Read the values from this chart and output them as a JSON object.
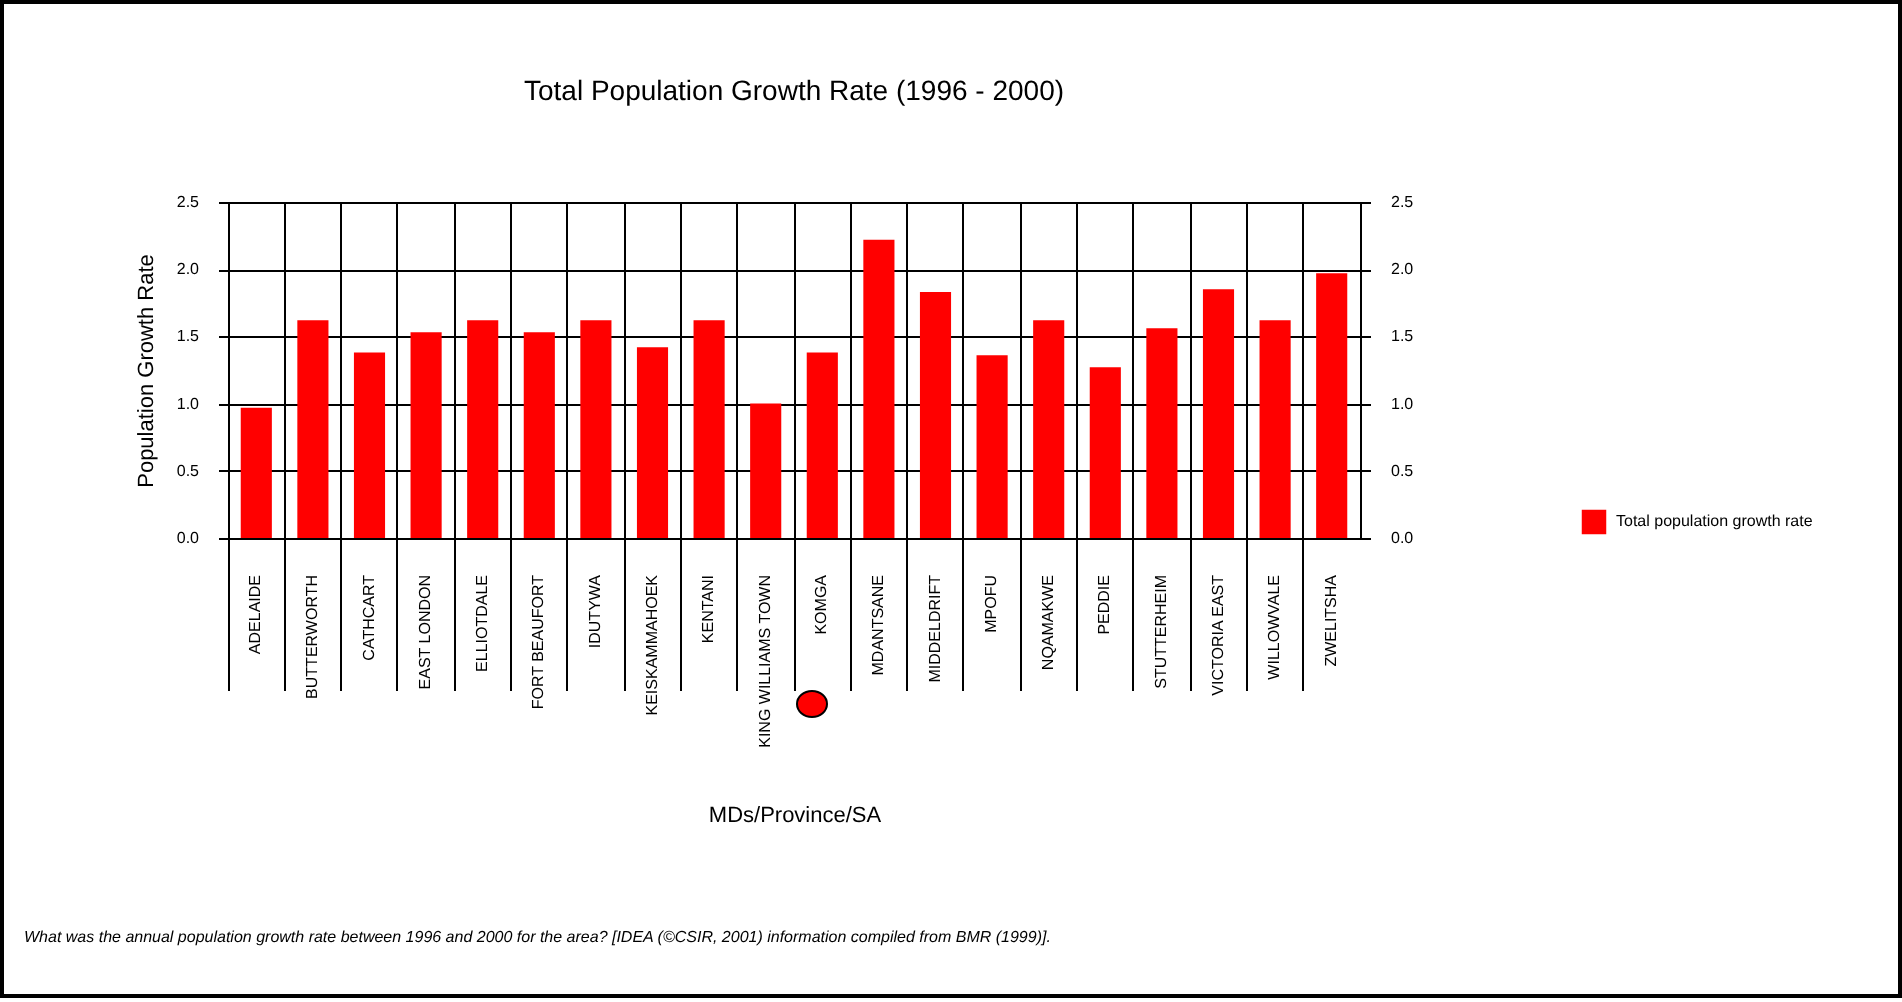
{
  "chart_data": {
    "type": "bar",
    "title": "Total Population Growth Rate (1996 - 2000)",
    "xlabel": "MDs/Province/SA",
    "ylabel": "Population Growth Rate",
    "categories": [
      "ADELAIDE",
      "BUTTERWORTH",
      "CATHCART",
      "EAST LONDON",
      "ELLIOTDALE",
      "FORT BEAUFORT",
      "IDUTYWA",
      "KEISKAMMAHOEK",
      "KENTANI",
      "KING WILLIAMS TOWN",
      "KOMGA",
      "MDANTSANE",
      "MIDDELDRIFT",
      "MPOFU",
      "NQAMAKWE",
      "PEDDIE",
      "STUTTERHEIM",
      "VICTORIA EAST",
      "WILLOWVALE",
      "ZWELITSHA"
    ],
    "series": [
      {
        "name": "Total population growth rate",
        "color": "#ff0000",
        "values": [
          0.97,
          1.62,
          1.38,
          1.53,
          1.62,
          1.53,
          1.62,
          1.42,
          1.62,
          1.0,
          1.38,
          2.22,
          1.83,
          1.36,
          1.62,
          1.27,
          1.56,
          1.85,
          1.62,
          1.97
        ]
      }
    ],
    "ylim": [
      0,
      2.5
    ],
    "yticks": [
      {
        "value": 0,
        "label": "0.0"
      },
      {
        "value": 0.5,
        "label": "0.5"
      },
      {
        "value": 1,
        "label": "1.0"
      },
      {
        "value": 1.5,
        "label": "1.5"
      },
      {
        "value": 2,
        "label": "2.0"
      },
      {
        "value": 2.5,
        "label": "2.5"
      }
    ],
    "y2lim": [
      0,
      2.5
    ],
    "y2ticks": [
      {
        "value": 0,
        "label": "0.0"
      },
      {
        "value": 0.5,
        "label": "0.5"
      },
      {
        "value": 1,
        "label": "1.0"
      },
      {
        "value": 1.5,
        "label": "1.5"
      },
      {
        "value": 2,
        "label": "2.0"
      },
      {
        "value": 2.5,
        "label": "2.5"
      }
    ],
    "grid": true,
    "legend": "right",
    "annotations": [
      "What was the annual population growth rate between 1996 and 2000 for the area? [IDEA (©CSIR, 2001) information compiled from BMR (1999)]."
    ]
  }
}
